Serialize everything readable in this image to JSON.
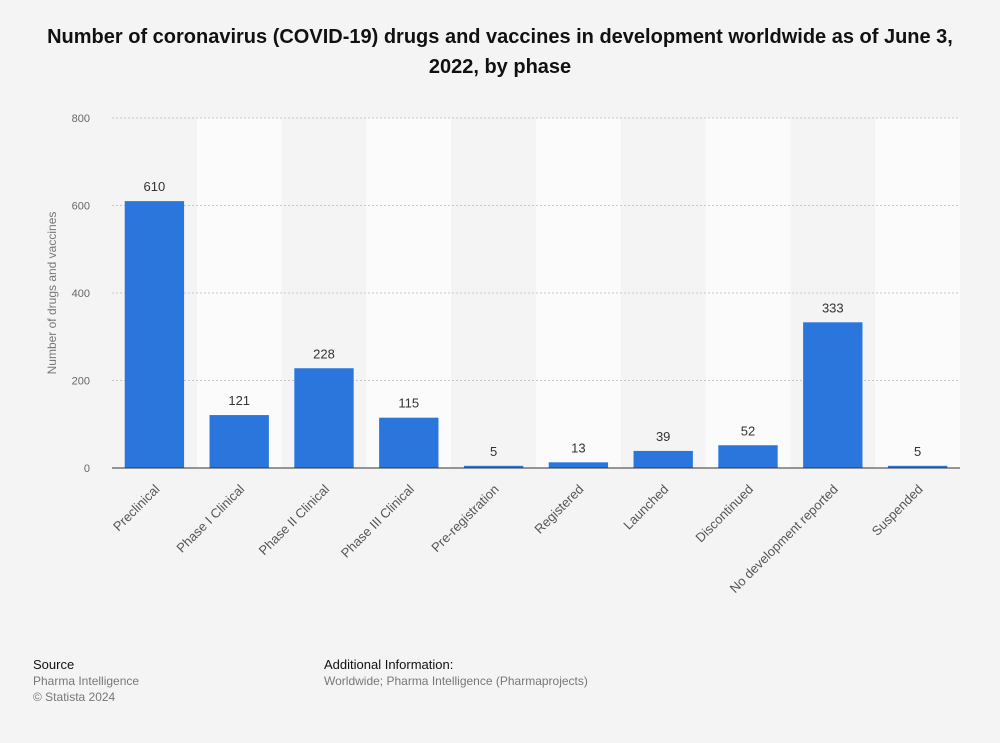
{
  "chart_data": {
    "type": "bar",
    "title": "Number of coronavirus (COVID-19) drugs and vaccines in development worldwide as of June 3, 2022, by phase",
    "categories": [
      "Preclinical",
      "Phase I Clinical",
      "Phase II Clinical",
      "Phase III Clinical",
      "Pre-registration",
      "Registered",
      "Launched",
      "Discontinued",
      "No development reported",
      "Suspended"
    ],
    "values": [
      610,
      121,
      228,
      115,
      5,
      13,
      39,
      52,
      333,
      5
    ],
    "xlabel": "",
    "ylabel": "Number of drugs and vaccines",
    "ylim": [
      0,
      800
    ],
    "yticks": [
      0,
      200,
      400,
      600,
      800
    ],
    "grid": true,
    "bar_color": "#2a76dd"
  },
  "footer": {
    "source_heading": "Source",
    "source_line1": "Pharma Intelligence",
    "source_line2": "© Statista 2024",
    "info_heading": "Additional Information:",
    "info_line": "Worldwide; Pharma Intelligence (Pharmaprojects)"
  }
}
